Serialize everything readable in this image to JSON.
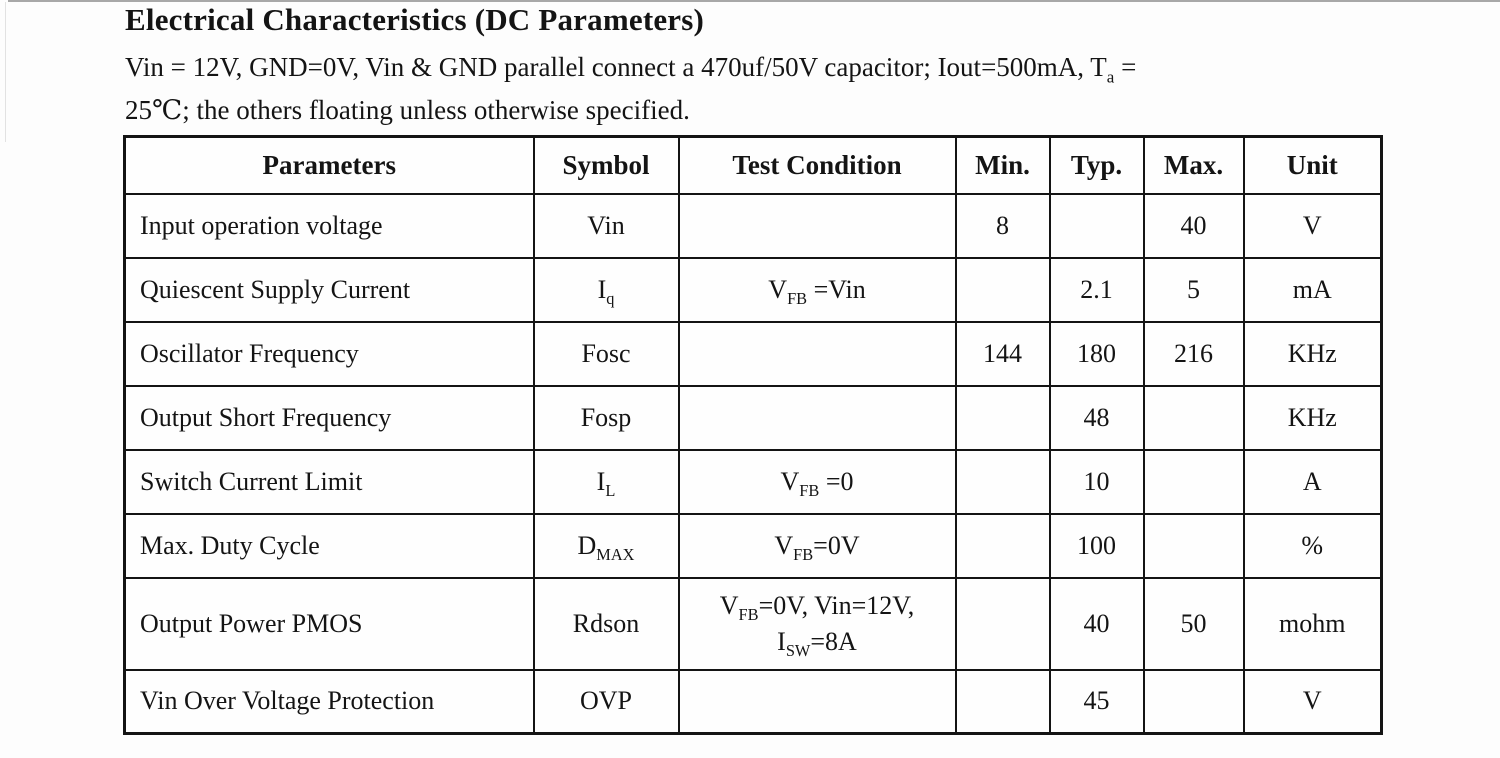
{
  "page": {
    "title": "Electrical Characteristics (DC Parameters)",
    "intro_line1": "Vin = 12V, GND=0V, Vin & GND parallel connect a 470uf/50V capacitor; Iout=500mA, T~a~ =",
    "intro_line2": "25℃; the others floating unless otherwise specified."
  },
  "table": {
    "headers": [
      "Parameters",
      "Symbol",
      "Test Condition",
      "Min.",
      "Typ.",
      "Max.",
      "Unit"
    ],
    "rows": [
      {
        "parameter": "Input operation voltage",
        "symbol": "Vin",
        "test_condition": "",
        "min": "8",
        "typ": "",
        "max": "40",
        "unit": "V"
      },
      {
        "parameter": "Quiescent Supply Current",
        "symbol": "I~q~",
        "test_condition": "V~FB~ =Vin",
        "min": "",
        "typ": "2.1",
        "max": "5",
        "unit": "mA"
      },
      {
        "parameter": "Oscillator Frequency",
        "symbol": "Fosc",
        "test_condition": "",
        "min": "144",
        "typ": "180",
        "max": "216",
        "unit": "KHz"
      },
      {
        "parameter": "Output Short Frequency",
        "symbol": "Fosp",
        "test_condition": "",
        "min": "",
        "typ": "48",
        "max": "",
        "unit": "KHz"
      },
      {
        "parameter": "Switch Current Limit",
        "symbol": "I~L~",
        "test_condition": "V~FB~ =0",
        "min": "",
        "typ": "10",
        "max": "",
        "unit": "A"
      },
      {
        "parameter": "Max. Duty Cycle",
        "symbol": "D~MAX~",
        "test_condition": "V~FB~=0V",
        "min": "",
        "typ": "100",
        "max": "",
        "unit": "%"
      },
      {
        "parameter": "Output Power PMOS",
        "symbol": "Rdson",
        "test_condition": "V~FB~=0V, Vin=12V,\nI~SW~=8A",
        "min": "",
        "typ": "40",
        "max": "50",
        "unit": "mohm"
      },
      {
        "parameter": "Vin Over Voltage Protection",
        "symbol": "OVP",
        "test_condition": "",
        "min": "",
        "typ": "45",
        "max": "",
        "unit": "V"
      }
    ]
  }
}
